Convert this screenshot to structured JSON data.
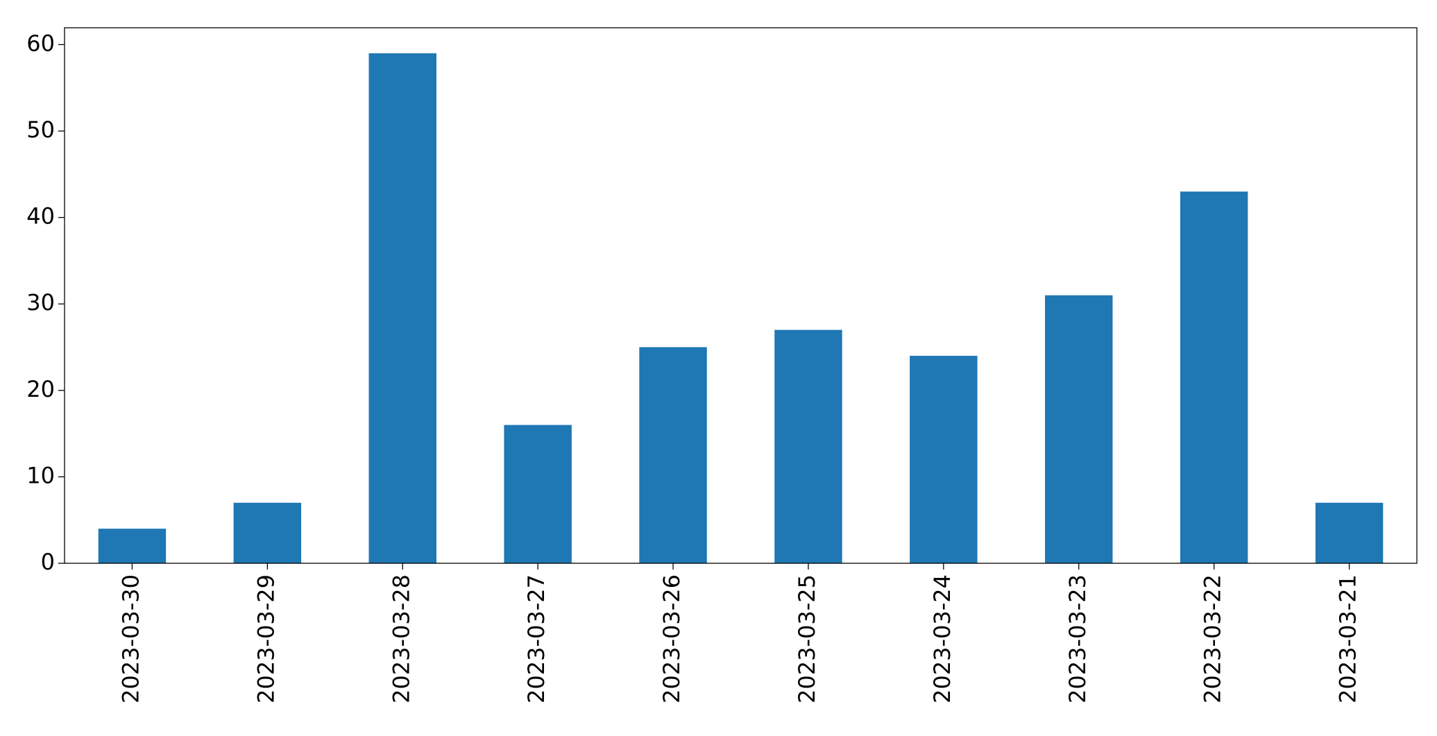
{
  "chart_data": {
    "type": "bar",
    "categories": [
      "2023-03-30",
      "2023-03-29",
      "2023-03-28",
      "2023-03-27",
      "2023-03-26",
      "2023-03-25",
      "2023-03-24",
      "2023-03-23",
      "2023-03-22",
      "2023-03-21"
    ],
    "values": [
      4,
      7,
      59,
      16,
      25,
      27,
      24,
      31,
      43,
      7
    ],
    "color": "#1f77b4",
    "ylim": [
      0,
      61.95
    ],
    "yticks": [
      0,
      10,
      20,
      30,
      40,
      50,
      60
    ],
    "grid": false
  }
}
